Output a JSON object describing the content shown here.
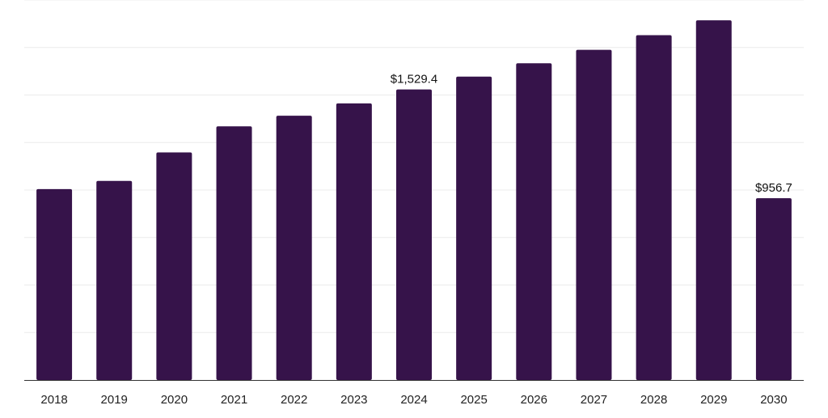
{
  "chart_data": {
    "type": "bar",
    "title": "",
    "xlabel": "",
    "ylabel": "",
    "categories": [
      "2018",
      "2019",
      "2020",
      "2021",
      "2022",
      "2023",
      "2024",
      "2025",
      "2026",
      "2027",
      "2028",
      "2029",
      "2030"
    ],
    "values": [
      1005,
      1048,
      1198,
      1335,
      1391,
      1456,
      1529.4,
      1597,
      1667,
      1738,
      1815,
      1893,
      956.7
    ],
    "data_labels": [
      {
        "category": "2024",
        "text": "$1,529.4"
      },
      {
        "category": "2030",
        "text": "$956.7"
      }
    ],
    "ylim": [
      0,
      2000
    ],
    "grid": true,
    "y_tick_labels_shown": false,
    "bar_color": "#36134a",
    "legend": "none"
  }
}
